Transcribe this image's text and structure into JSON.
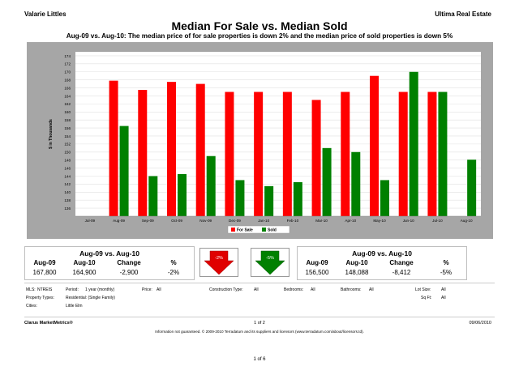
{
  "header": {
    "agent": "Valarie Littles",
    "brokerage": "Ultima Real Estate",
    "title": "Median For Sale vs. Median Sold",
    "subtitle": "Aug-09 vs. Aug-10:  The median price of for sale properties is down 2% and the median price of sold properties is down 5%"
  },
  "chart_data": {
    "type": "bar",
    "ylabel": "$ in Thousands",
    "ylim": [
      134,
      175
    ],
    "yticks": [
      136,
      138,
      140,
      142,
      144,
      146,
      148,
      150,
      152,
      154,
      156,
      158,
      160,
      162,
      164,
      166,
      168,
      170,
      172,
      174
    ],
    "categories": [
      "Jul-09",
      "Aug-09",
      "Sep-09",
      "Oct-09",
      "Nov-09",
      "Dec-09",
      "Jan-10",
      "Feb-10",
      "Mar-10",
      "Apr-10",
      "May-10",
      "Jun-10",
      "Jul-10",
      "Aug-10"
    ],
    "series": [
      {
        "name": "For Sale",
        "color": "#ff0000",
        "values": [
          null,
          167.8,
          165.5,
          167.5,
          167,
          165,
          165,
          165,
          163,
          165,
          169,
          165,
          165,
          null
        ]
      },
      {
        "name": "Sold",
        "color": "#008000",
        "values": [
          null,
          156.5,
          144,
          144.5,
          149,
          143,
          141.5,
          142.5,
          151,
          150,
          143,
          170,
          165,
          148.1
        ]
      }
    ],
    "legend": "bottom-center"
  },
  "for_sale": {
    "heading": "Aug-09 vs. Aug-10",
    "cols": [
      "Aug-09",
      "Aug-10",
      "Change",
      "%"
    ],
    "values": [
      "167,800",
      "164,900",
      "-2,900",
      "-2%"
    ],
    "badge": "-2%"
  },
  "sold": {
    "heading": "Aug-09 vs. Aug-10",
    "cols": [
      "Aug-09",
      "Aug-10",
      "Change",
      "%"
    ],
    "values": [
      "156,500",
      "148,088",
      "-8,412",
      "-5%"
    ],
    "badge": "-5%"
  },
  "criteria": {
    "mls_label": "MLS:",
    "mls": "NTREIS",
    "period_label": "Period:",
    "period": "1 year (monthly)",
    "price_label": "Price:",
    "price": "All",
    "construction_label": "Construction Type:",
    "construction": "All",
    "bedrooms_label": "Bedrooms:",
    "bedrooms": "All",
    "bathrooms_label": "Bathrooms:",
    "bathrooms": "All",
    "lot_label": "Lot Size:",
    "lot": "All",
    "ptype_label": "Property Types:",
    "ptype": "Residential: (Single Family)",
    "sqft_label": "Sq Ft:",
    "sqft": "All",
    "cities_label": "Cities:",
    "cities": "Little Elm"
  },
  "footer": {
    "brand": "Clarus MarketMetrics®",
    "page": "1 of 2",
    "date": "09/06/2010",
    "disclaimer": "Information not guaranteed. © 2009-2010 Terradatum and its suppliers and licensors (www.terradatum.com/about/licensors.td).",
    "doc_page": "1 of 6"
  }
}
